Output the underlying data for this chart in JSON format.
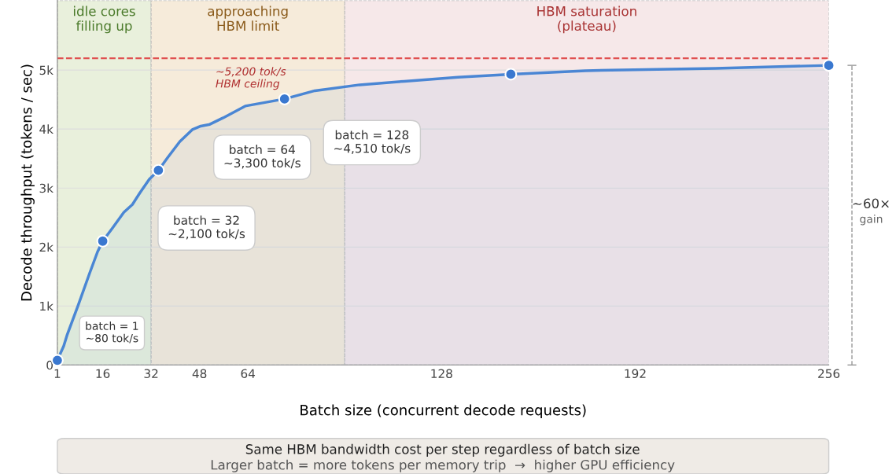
{
  "chart_data": {
    "type": "area",
    "xlabel": "Batch size (concurrent decode requests)",
    "ylabel": "Decode throughput (tokens / sec)",
    "xlim": [
      1,
      256
    ],
    "xticks": [
      1,
      16,
      32,
      48,
      64,
      128,
      192,
      256
    ],
    "ylim": [
      0,
      6180
    ],
    "yticks": [
      0,
      {
        "value": 1000,
        "label": "1k"
      },
      {
        "value": 2000,
        "label": "2k"
      },
      {
        "value": 3000,
        "label": "3k"
      },
      {
        "value": 4000,
        "label": "4k"
      },
      {
        "value": 5000,
        "label": "5k"
      }
    ],
    "grid": "y",
    "legend": false,
    "series": [
      {
        "color": "#4a86d4",
        "line_style": "solid",
        "marker": "none",
        "x": [
          1,
          3.1,
          4.3,
          8.0,
          11.7,
          14.3,
          16,
          19.2,
          23.0,
          25.8,
          28.3,
          31.4,
          34.4,
          37.5,
          41.5,
          45.6,
          48.4,
          51.4,
          55.8,
          63.1,
          76.1,
          86.1,
          100.9,
          115.6,
          133.4,
          150.9,
          175.6,
          218.5,
          256
        ],
        "values": [
          80,
          320,
          520,
          1030,
          1560,
          1920,
          2100,
          2320,
          2590,
          2720,
          2920,
          3150,
          3300,
          3520,
          3790,
          3990,
          4050,
          4080,
          4190,
          4390,
          4510,
          4650,
          4750,
          4810,
          4880,
          4930,
          4990,
          5030,
          5080
        ]
      },
      {
        "type": "scatter",
        "color": "#3a78d0",
        "marker": "circle",
        "x": [
          1,
          16,
          34.4,
          76.1,
          150.9,
          256
        ],
        "values": [
          80,
          2100,
          3300,
          4510,
          4930,
          5080
        ]
      }
    ],
    "bands": [
      {
        "axis": "x",
        "from": 1,
        "to": 32,
        "label": "idle cores\nfilling up",
        "color": "#e9f0dc"
      },
      {
        "axis": "x",
        "from": 32,
        "to": 96,
        "label": "approaching\nHBM limit",
        "color": "#f6ebda"
      },
      {
        "axis": "x",
        "from": 96,
        "to": 256,
        "label": "HBM saturation\n(plateau)",
        "color": "#f6e8e9"
      }
    ],
    "ref_lines": [
      {
        "axis": "y",
        "value": 5200,
        "label": "~5,200 tok/s\nHBM ceiling",
        "color": "#e05050",
        "line_style": "dashed"
      }
    ],
    "annotations": [
      "batch = 1\n~80 tok/s",
      "batch = 32\n~2,100 tok/s",
      "batch = 64\n~3,300 tok/s",
      "batch = 128\n~4,510 tok/s",
      "~60×\ngain",
      "Same HBM bandwidth cost per step regardless of batch size",
      "Larger batch = more tokens per memory trip  →  higher GPU efficiency"
    ]
  }
}
